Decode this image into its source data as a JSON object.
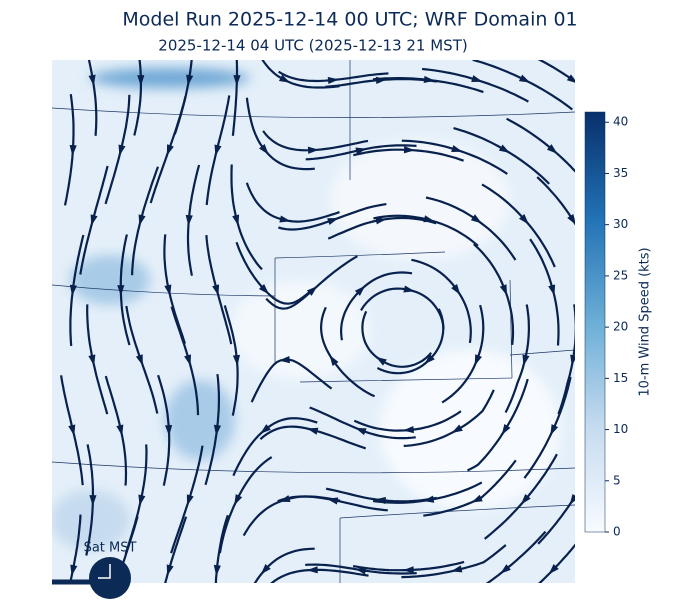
{
  "title": "Model Run 2025-12-14 00 UTC; WRF Domain 01",
  "subtitle": "2025-12-14 04 UTC  (2025-12-13 21 MST)",
  "colorbar": {
    "label": "10-m Wind Speed (kts)",
    "lim": [
      0,
      41
    ],
    "ticks": [
      0,
      5,
      10,
      15,
      20,
      25,
      30,
      35,
      40
    ]
  },
  "clock_label": "Sat MST"
}
